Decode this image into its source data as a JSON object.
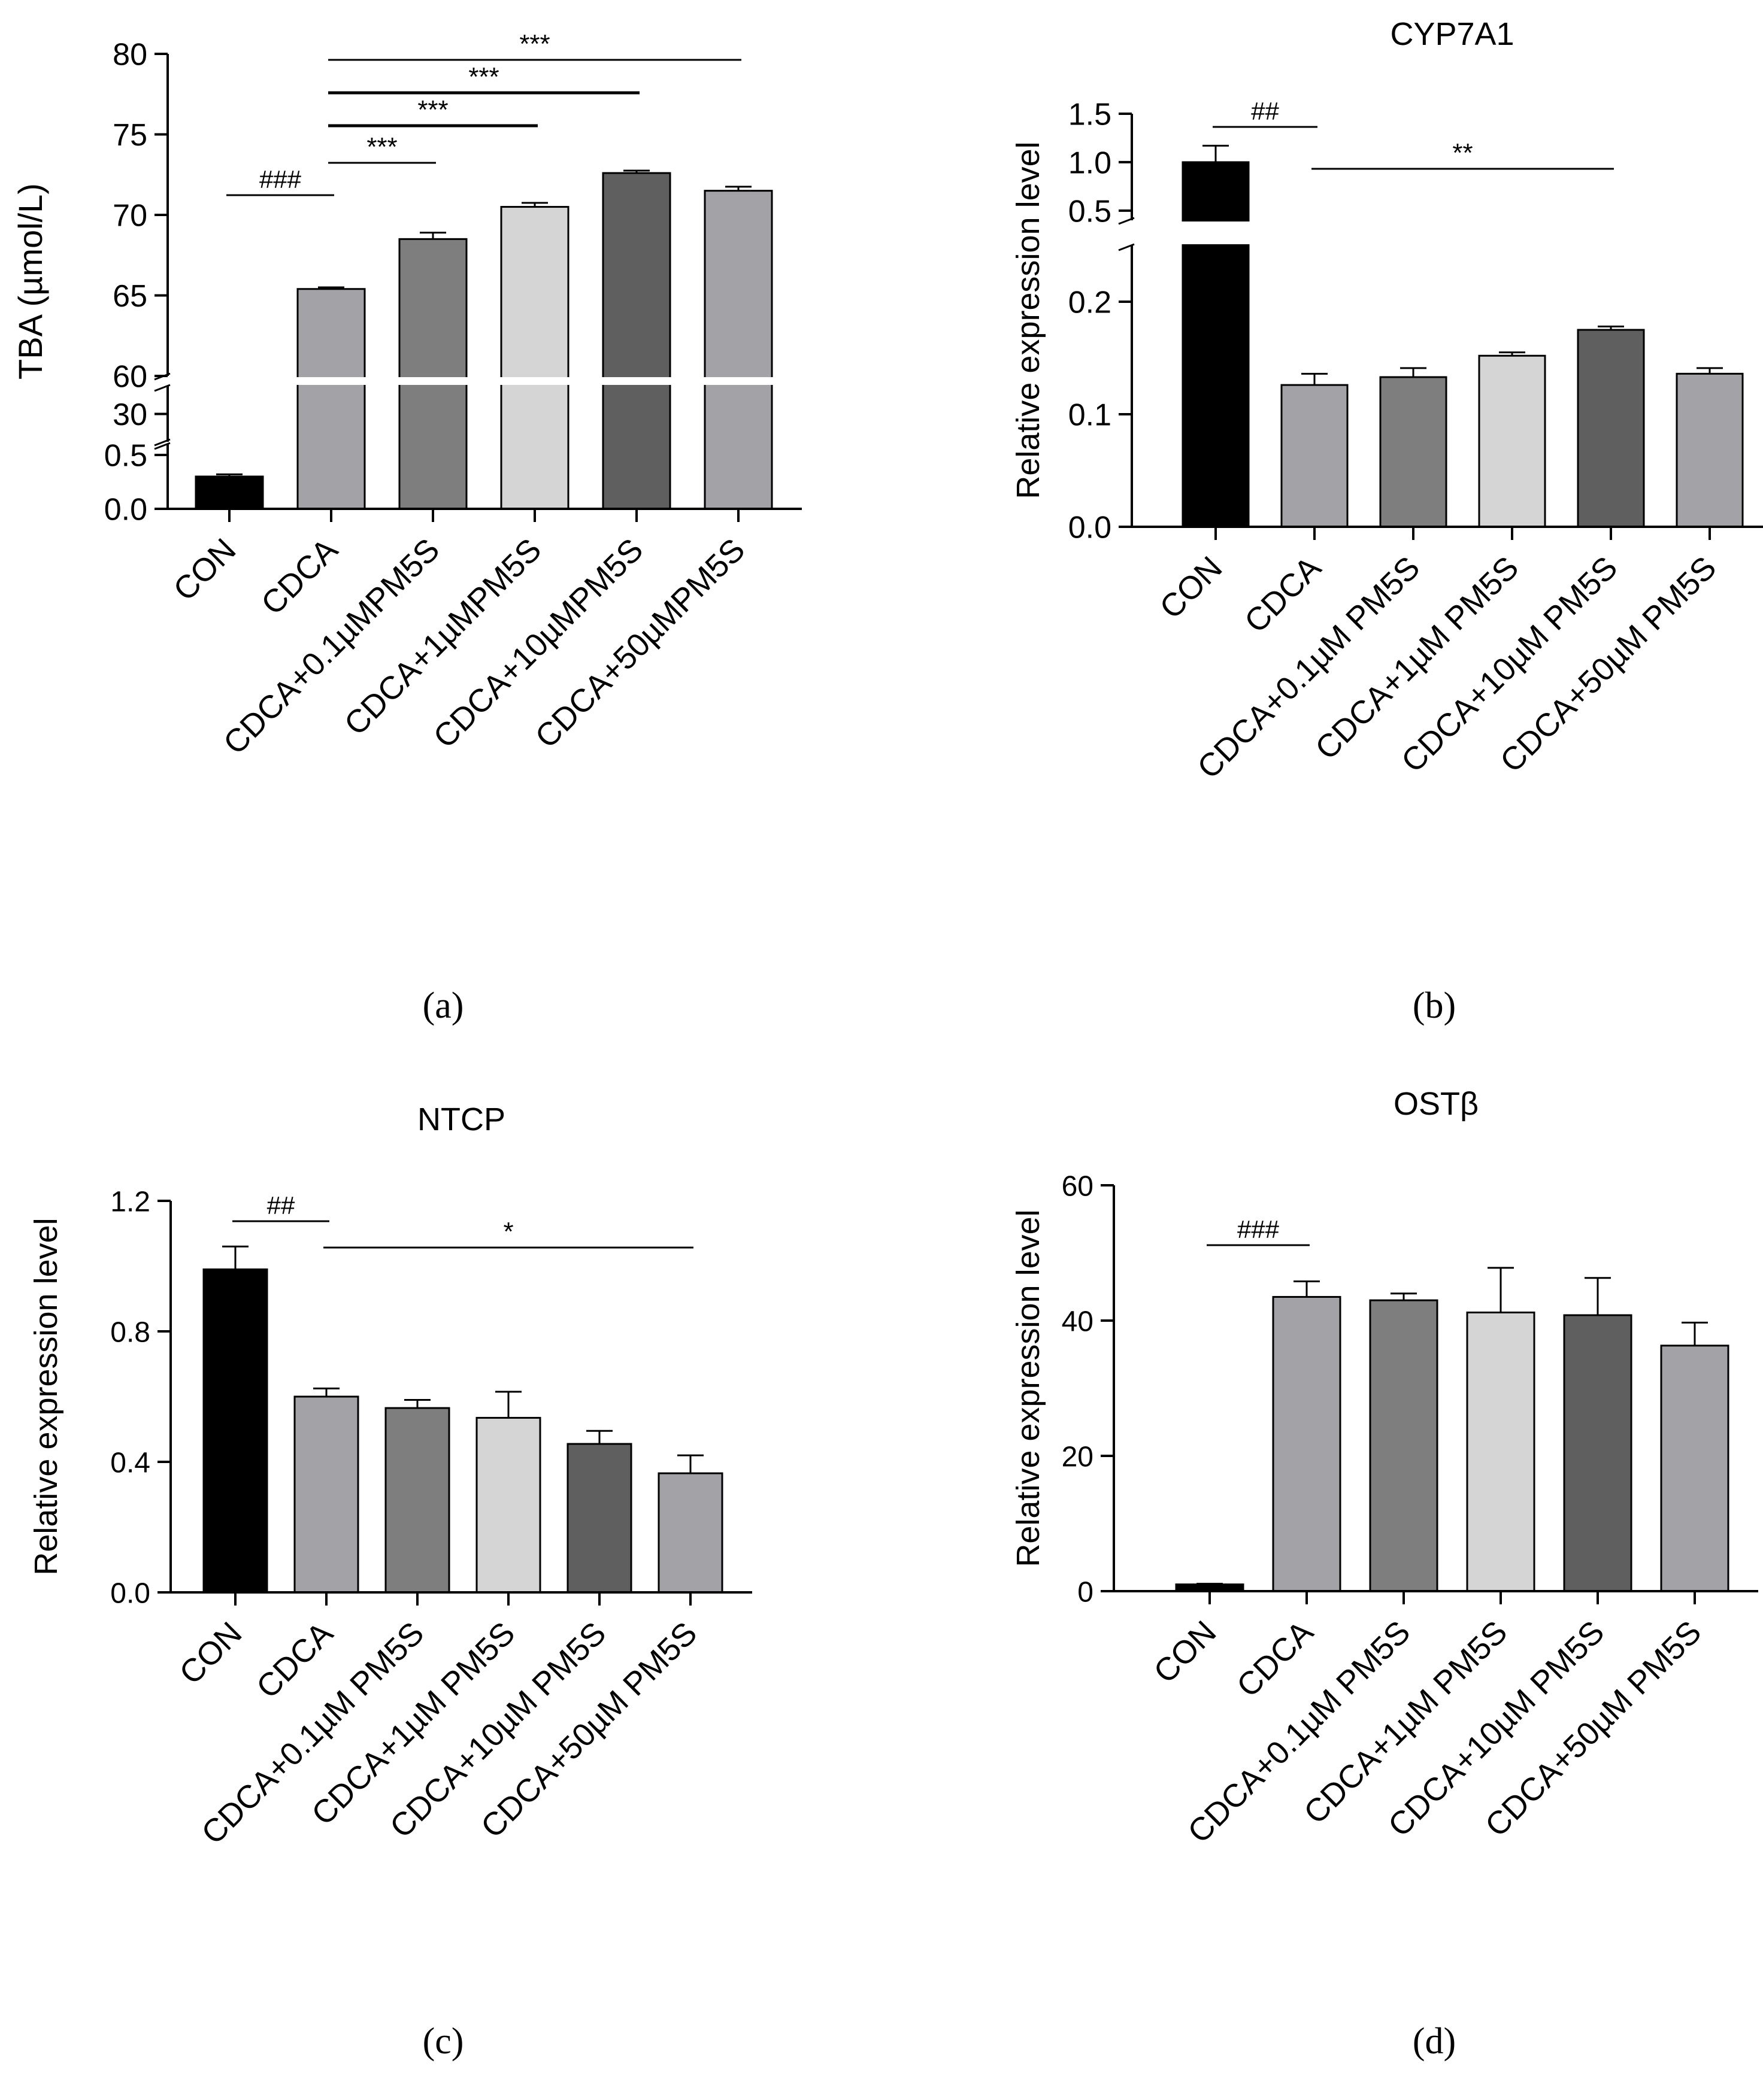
{
  "colors": {
    "CON": "#000000",
    "CDCA": "#a2a2a7",
    "CDCA_0_1": "#7e7e7e",
    "CDCA_1": "#d5d5d5",
    "CDCA_10": "#5f5f5f",
    "CDCA_50": "#a2a2a7"
  },
  "chart_data": [
    {
      "panel": "a",
      "type": "bar",
      "caption": "(a)",
      "title": "",
      "ylabel": "TBA (µmol/L)",
      "categories": [
        "CON",
        "CDCA",
        "CDCA+0.1µMPM5S",
        "CDCA+1µMPM5S",
        "CDCA+10µMPM5S",
        "CDCA+50µMPM5S"
      ],
      "values": [
        0.3,
        65.4,
        68.5,
        70.5,
        72.6,
        71.5
      ],
      "errors": [
        0.02,
        0.1,
        0.4,
        0.25,
        0.15,
        0.25
      ],
      "broken_axis": true,
      "axis_segments": [
        {
          "range": [
            0,
            0.6
          ],
          "ticks": [
            "0.0",
            "0.5"
          ]
        },
        {
          "range": [
            25,
            35
          ],
          "ticks": [
            "30"
          ]
        },
        {
          "range": [
            60,
            80
          ],
          "ticks": [
            "60",
            "65",
            "70",
            "75",
            "80"
          ]
        }
      ],
      "annotations": [
        {
          "text": "###",
          "from": "CON",
          "to": "CDCA"
        },
        {
          "text": "***",
          "from": "CDCA",
          "to": "CDCA+0.1µMPM5S"
        },
        {
          "text": "***",
          "from": "CDCA",
          "to": "CDCA+1µMPM5S"
        },
        {
          "text": "***",
          "from": "CDCA",
          "to": "CDCA+10µMPM5S"
        },
        {
          "text": "***",
          "from": "CDCA",
          "to": "CDCA+50µMPM5S"
        }
      ]
    },
    {
      "panel": "b",
      "type": "bar",
      "caption": "(b)",
      "title": "CYP7A1",
      "ylabel": "Relative expression level",
      "categories": [
        "CON",
        "CDCA",
        "CDCA+0.1µM PM5S",
        "CDCA+1µM PM5S",
        "CDCA+10µM PM5S",
        "CDCA+50µM PM5S"
      ],
      "values": [
        1.0,
        0.126,
        0.133,
        0.152,
        0.175,
        0.136
      ],
      "errors": [
        0.17,
        0.01,
        0.008,
        0.003,
        0.003,
        0.005
      ],
      "broken_axis": true,
      "axis_segments": [
        {
          "range": [
            0,
            0.25
          ],
          "ticks": [
            "0.0",
            "0.1",
            "0.2"
          ]
        },
        {
          "range": [
            0.4,
            1.5
          ],
          "ticks": [
            "0.5",
            "1.0",
            "1.5"
          ]
        }
      ],
      "annotations": [
        {
          "text": "##",
          "from": "CON",
          "to": "CDCA"
        },
        {
          "text": "**",
          "from": "CDCA",
          "to": "CDCA+10µM PM5S"
        }
      ]
    },
    {
      "panel": "c",
      "type": "bar",
      "caption": "(c)",
      "title": "NTCP",
      "ylabel": "Relative expression level",
      "categories": [
        "CON",
        "CDCA",
        "CDCA+0.1µM PM5S",
        "CDCA+1µM PM5S",
        "CDCA+10µM PM5S",
        "CDCA+50µM PM5S"
      ],
      "values": [
        0.99,
        0.6,
        0.565,
        0.535,
        0.455,
        0.365
      ],
      "errors": [
        0.07,
        0.025,
        0.025,
        0.08,
        0.04,
        0.055
      ],
      "ylim": [
        0,
        1.2
      ],
      "yticks": [
        "0.0",
        "0.4",
        "0.8",
        "1.2"
      ],
      "annotations": [
        {
          "text": "##",
          "from": "CON",
          "to": "CDCA"
        },
        {
          "text": "*",
          "from": "CDCA",
          "to": "CDCA+50µM PM5S"
        }
      ]
    },
    {
      "panel": "d",
      "type": "bar",
      "caption": "(d)",
      "title": "OSTβ",
      "ylabel": "Relative expression level",
      "categories": [
        "CON",
        "CDCA",
        "CDCA+0.1µM PM5S",
        "CDCA+1µM PM5S",
        "CDCA+10µM PM5S",
        "CDCA+50µM PM5S"
      ],
      "values": [
        1.0,
        43.5,
        43.0,
        41.2,
        40.8,
        36.3
      ],
      "errors": [
        0.1,
        2.3,
        1.0,
        6.6,
        5.5,
        3.4
      ],
      "ylim": [
        0,
        60
      ],
      "yticks": [
        "0",
        "20",
        "40",
        "60"
      ],
      "annotations": [
        {
          "text": "###",
          "from": "CON",
          "to": "CDCA"
        }
      ]
    }
  ]
}
